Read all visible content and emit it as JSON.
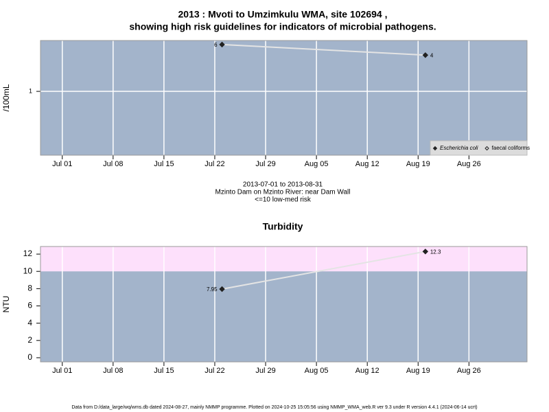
{
  "chart_data": [
    {
      "type": "line",
      "title": [
        "2013 : Mvoti to Umzimkulu WMA, site 102694 ,",
        "showing high risk guidelines for indicators of microbial pathogens."
      ],
      "ylabel": "/100mL",
      "log_y": true,
      "grid": "both",
      "x": [
        "2013-07-23",
        "2013-08-20"
      ],
      "series": [
        {
          "name": "Escherichia coli",
          "color": "#222222",
          "marker": "filled",
          "font_style": "italic",
          "values": [
            6,
            4
          ]
        },
        {
          "name": "faecal coliforms",
          "color": "#222222",
          "marker": "open",
          "font_style": "normal",
          "values": [
            null,
            null
          ]
        }
      ],
      "line_color": "#e4e4e4",
      "xlim": [
        "2013-06-28",
        "2013-09-03"
      ],
      "xticks": [
        {
          "value": "2013-07-01",
          "label": "Jul 01"
        },
        {
          "value": "2013-07-08",
          "label": "Jul 08"
        },
        {
          "value": "2013-07-15",
          "label": "Jul 15"
        },
        {
          "value": "2013-07-22",
          "label": "Jul 22"
        },
        {
          "value": "2013-07-29",
          "label": "Jul 29"
        },
        {
          "value": "2013-08-05",
          "label": "Aug 05"
        },
        {
          "value": "2013-08-12",
          "label": "Aug 12"
        },
        {
          "value": "2013-08-19",
          "label": "Aug 19"
        },
        {
          "value": "2013-08-26",
          "label": "Aug 26"
        }
      ],
      "ylim": [
        0.087,
        7
      ],
      "yticks": [
        1
      ],
      "legend": "bottom-right",
      "notes": [
        "2013-07-01 to 2013-08-31",
        "Mzinto Dam on Mzinto River: near Dam Wall",
        "<=10 low-med risk"
      ]
    },
    {
      "type": "line",
      "title": [
        "Turbidity"
      ],
      "ylabel": "NTU",
      "log_y": false,
      "grid": "x",
      "x": [
        "2013-07-23",
        "2013-08-20"
      ],
      "series": [
        {
          "color": "#222222",
          "marker": "filled",
          "values": [
            7.95,
            12.3
          ]
        }
      ],
      "line_color": "#e4e4e4",
      "risk_band": {
        "from": 10,
        "color": "#fde0fb"
      },
      "xlim": [
        "2013-06-28",
        "2013-09-03"
      ],
      "xticks": [
        {
          "value": "2013-07-01",
          "label": "Jul 01"
        },
        {
          "value": "2013-07-08",
          "label": "Jul 08"
        },
        {
          "value": "2013-07-15",
          "label": "Jul 15"
        },
        {
          "value": "2013-07-22",
          "label": "Jul 22"
        },
        {
          "value": "2013-07-29",
          "label": "Jul 29"
        },
        {
          "value": "2013-08-05",
          "label": "Aug 05"
        },
        {
          "value": "2013-08-12",
          "label": "Aug 12"
        },
        {
          "value": "2013-08-19",
          "label": "Aug 19"
        },
        {
          "value": "2013-08-26",
          "label": "Aug 26"
        }
      ],
      "ylim": [
        -0.48,
        12.88
      ],
      "yticks": [
        0,
        2,
        4,
        6,
        8,
        10,
        12
      ]
    }
  ],
  "footer": "Data from D:/data_large/wq/wms.db dated 2024-08-27, mainly NMMP programme. Plotted on 2024-10-25 15:05:56 using NMMP_WMA_web.R ver 9.3 under R version 4.4.1 (2024-06-14 ucrt)"
}
